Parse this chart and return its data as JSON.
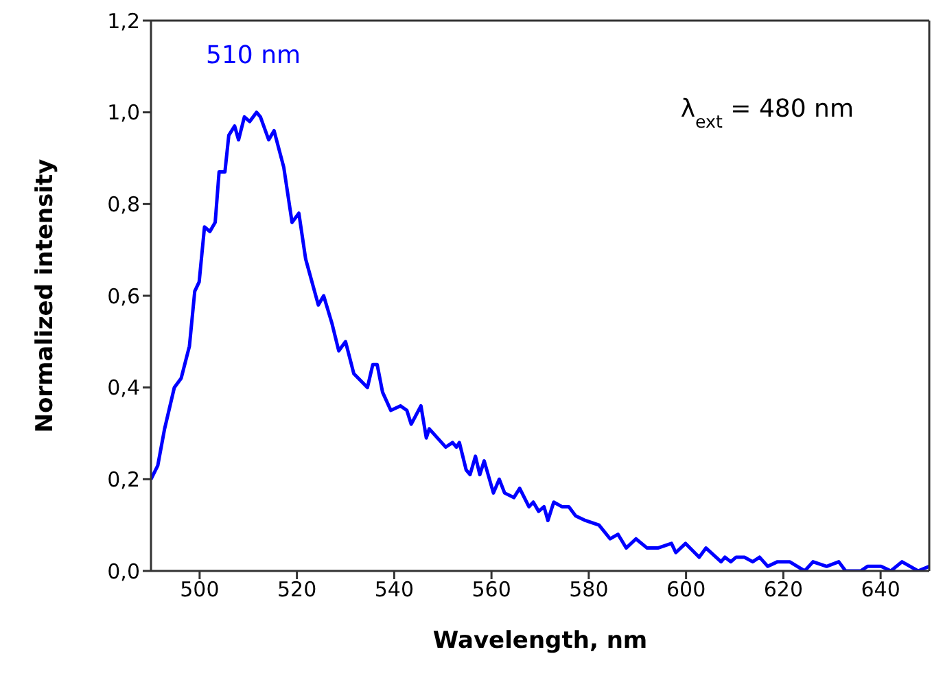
{
  "chart_data": {
    "type": "line",
    "xlabel": "Wavelength, nm",
    "ylabel": "Normalized intensity",
    "annotations": [
      "510 nm",
      "λ$_{ext}$ = 480 nm"
    ],
    "xlim": [
      490,
      650
    ],
    "xticks": [
      500,
      520,
      540,
      560,
      580,
      600,
      620,
      640
    ],
    "ylim": [
      0,
      1.2
    ],
    "yticks": [
      {
        "value": 0,
        "label": "0,0"
      },
      {
        "value": 0.2,
        "label": "0,2"
      },
      {
        "value": 0.4,
        "label": "0,4"
      },
      {
        "value": 0.6,
        "label": "0,6"
      },
      {
        "value": 0.8,
        "label": "0,8"
      },
      {
        "value": 1.0,
        "label": "1,0"
      },
      {
        "value": 1.2,
        "label": "1,2"
      }
    ],
    "grid": false,
    "marker": "none",
    "line_style": "solid",
    "series": [
      {
        "color": "#0000ff",
        "x": [
          490,
          491.4,
          492.8,
          494.8,
          496.2,
          497.9,
          499,
          499.9,
          501,
          502.1,
          503.2,
          504,
          505.2,
          506,
          507.2,
          508,
          509.2,
          510.3,
          511.7,
          512.5,
          514.2,
          515.3,
          517.3,
          519,
          520.4,
          521.8,
          524.4,
          525.5,
          527.2,
          528.6,
          530,
          531.7,
          534.5,
          535.6,
          536.5,
          537.6,
          539.3,
          541.3,
          542.6,
          543.5,
          545.5,
          546.6,
          547.2,
          550.6,
          552,
          552.8,
          553.4,
          554.8,
          555.6,
          556.7,
          557.6,
          558.5,
          560.4,
          561.6,
          562.7,
          564.6,
          565.8,
          567.7,
          568.6,
          569.7,
          570.8,
          571.6,
          572.8,
          574.5,
          575.9,
          577.3,
          579.3,
          582.1,
          584.4,
          586,
          587.7,
          589.7,
          592,
          594.2,
          597,
          597.9,
          599.9,
          602.7,
          604.1,
          607.2,
          608,
          609.2,
          610.3,
          612,
          613.7,
          615.1,
          616.8,
          618.8,
          620.4,
          621.3,
          624.4,
          626.1,
          628.9,
          631.4,
          632.8,
          635.9,
          637.3,
          640.1,
          642.1,
          644.4,
          647.7,
          650
        ],
        "values": [
          0.2,
          0.23,
          0.31,
          0.4,
          0.42,
          0.49,
          0.61,
          0.63,
          0.75,
          0.74,
          0.76,
          0.87,
          0.87,
          0.95,
          0.97,
          0.94,
          0.99,
          0.98,
          1.0,
          0.99,
          0.94,
          0.96,
          0.88,
          0.76,
          0.78,
          0.68,
          0.58,
          0.6,
          0.54,
          0.48,
          0.5,
          0.43,
          0.4,
          0.45,
          0.45,
          0.39,
          0.35,
          0.36,
          0.35,
          0.32,
          0.36,
          0.29,
          0.31,
          0.27,
          0.28,
          0.27,
          0.28,
          0.22,
          0.21,
          0.25,
          0.21,
          0.24,
          0.17,
          0.2,
          0.17,
          0.16,
          0.18,
          0.14,
          0.15,
          0.13,
          0.14,
          0.11,
          0.15,
          0.14,
          0.14,
          0.12,
          0.11,
          0.1,
          0.07,
          0.08,
          0.05,
          0.07,
          0.05,
          0.05,
          0.06,
          0.04,
          0.06,
          0.03,
          0.05,
          0.02,
          0.03,
          0.02,
          0.03,
          0.03,
          0.02,
          0.03,
          0.01,
          0.02,
          0.02,
          0.02,
          0.0,
          0.02,
          0.01,
          0.02,
          0.0,
          0.0,
          0.01,
          0.01,
          0.0,
          0.02,
          0.0,
          0.01
        ]
      }
    ]
  }
}
